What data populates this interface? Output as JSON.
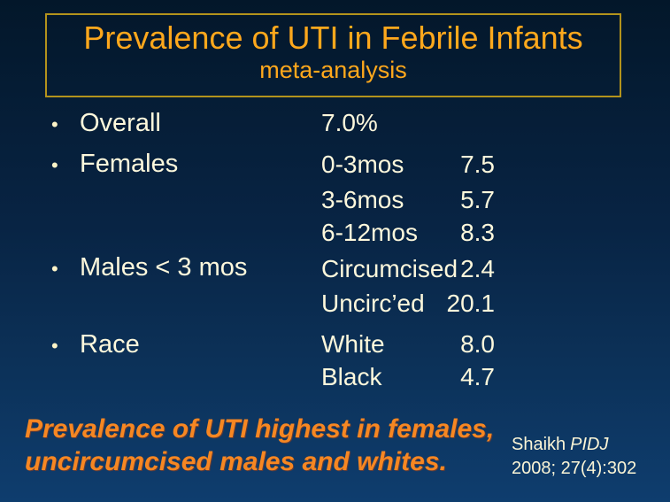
{
  "slide": {
    "title": "Prevalence of UTI in Febrile Infants",
    "subtitle": "meta-analysis"
  },
  "icons": {
    "bullet": "•"
  },
  "bullets": [
    {
      "label": "Overall"
    },
    {
      "label": "Females"
    },
    {
      "label": "Males < 3 mos"
    },
    {
      "label": "Race"
    }
  ],
  "stats": [
    {
      "label": "7.0%",
      "value": ""
    },
    {
      "label": "0-3mos",
      "value": "7.5"
    },
    {
      "label": "3-6mos",
      "value": "5.7"
    },
    {
      "label": "6-12mos",
      "value": "8.3"
    },
    {
      "label": "Circumcised",
      "value": "2.4"
    },
    {
      "label": "Uncirc’ed",
      "value": "20.1"
    },
    {
      "label": "White",
      "value": "8.0"
    },
    {
      "label": "Black",
      "value": "4.7"
    }
  ],
  "note": {
    "line1": "Prevalence of UTI highest in females,",
    "line2": "uncircumcised males and whites."
  },
  "citation": {
    "author": "Shaikh",
    "journal": "PIDJ",
    "ref": "2008; 27(4):302"
  },
  "colors": {
    "background_top": "#03172a",
    "background_bottom": "#0e3d6e",
    "title_text": "#ffa81c",
    "title_border": "#b3931c",
    "body_text": "#fdf8dc",
    "note_text": "#f68722",
    "citation_text": "#fbf5d6"
  }
}
